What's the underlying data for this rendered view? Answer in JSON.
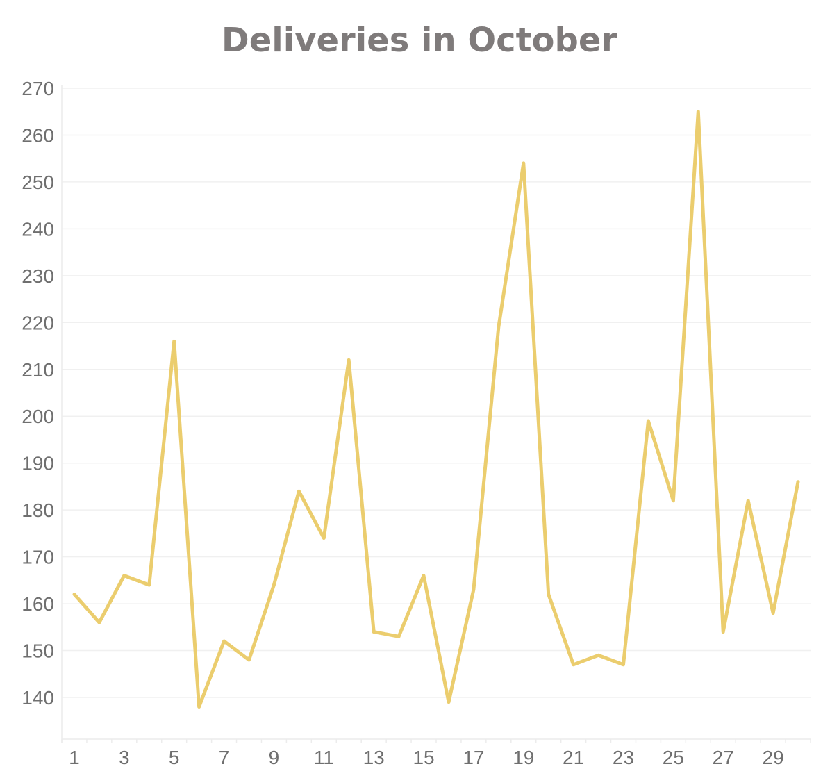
{
  "chart_data": {
    "type": "line",
    "title": "Deliveries in October",
    "xlabel": "",
    "ylabel": "",
    "x": [
      1,
      2,
      3,
      4,
      5,
      6,
      7,
      8,
      9,
      10,
      11,
      12,
      13,
      14,
      15,
      16,
      17,
      18,
      19,
      20,
      21,
      22,
      23,
      24,
      25,
      26,
      27,
      28,
      29,
      30
    ],
    "series": [
      {
        "name": "Deliveries",
        "color": "#ebcd6e",
        "values": [
          162,
          156,
          166,
          164,
          216,
          138,
          152,
          148,
          164,
          184,
          174,
          212,
          154,
          153,
          166,
          139,
          163,
          219,
          254,
          162,
          147,
          149,
          147,
          199,
          182,
          265,
          154,
          182,
          158,
          186
        ]
      }
    ],
    "x_tick_labels": [
      "1",
      "3",
      "5",
      "7",
      "9",
      "11",
      "13",
      "15",
      "17",
      "19",
      "21",
      "23",
      "25",
      "27",
      "29"
    ],
    "y_tick_labels": [
      "140",
      "150",
      "160",
      "170",
      "180",
      "190",
      "200",
      "210",
      "220",
      "230",
      "240",
      "250",
      "260",
      "270"
    ],
    "ylim": [
      131,
      271
    ],
    "grid": true,
    "legend": "none"
  }
}
